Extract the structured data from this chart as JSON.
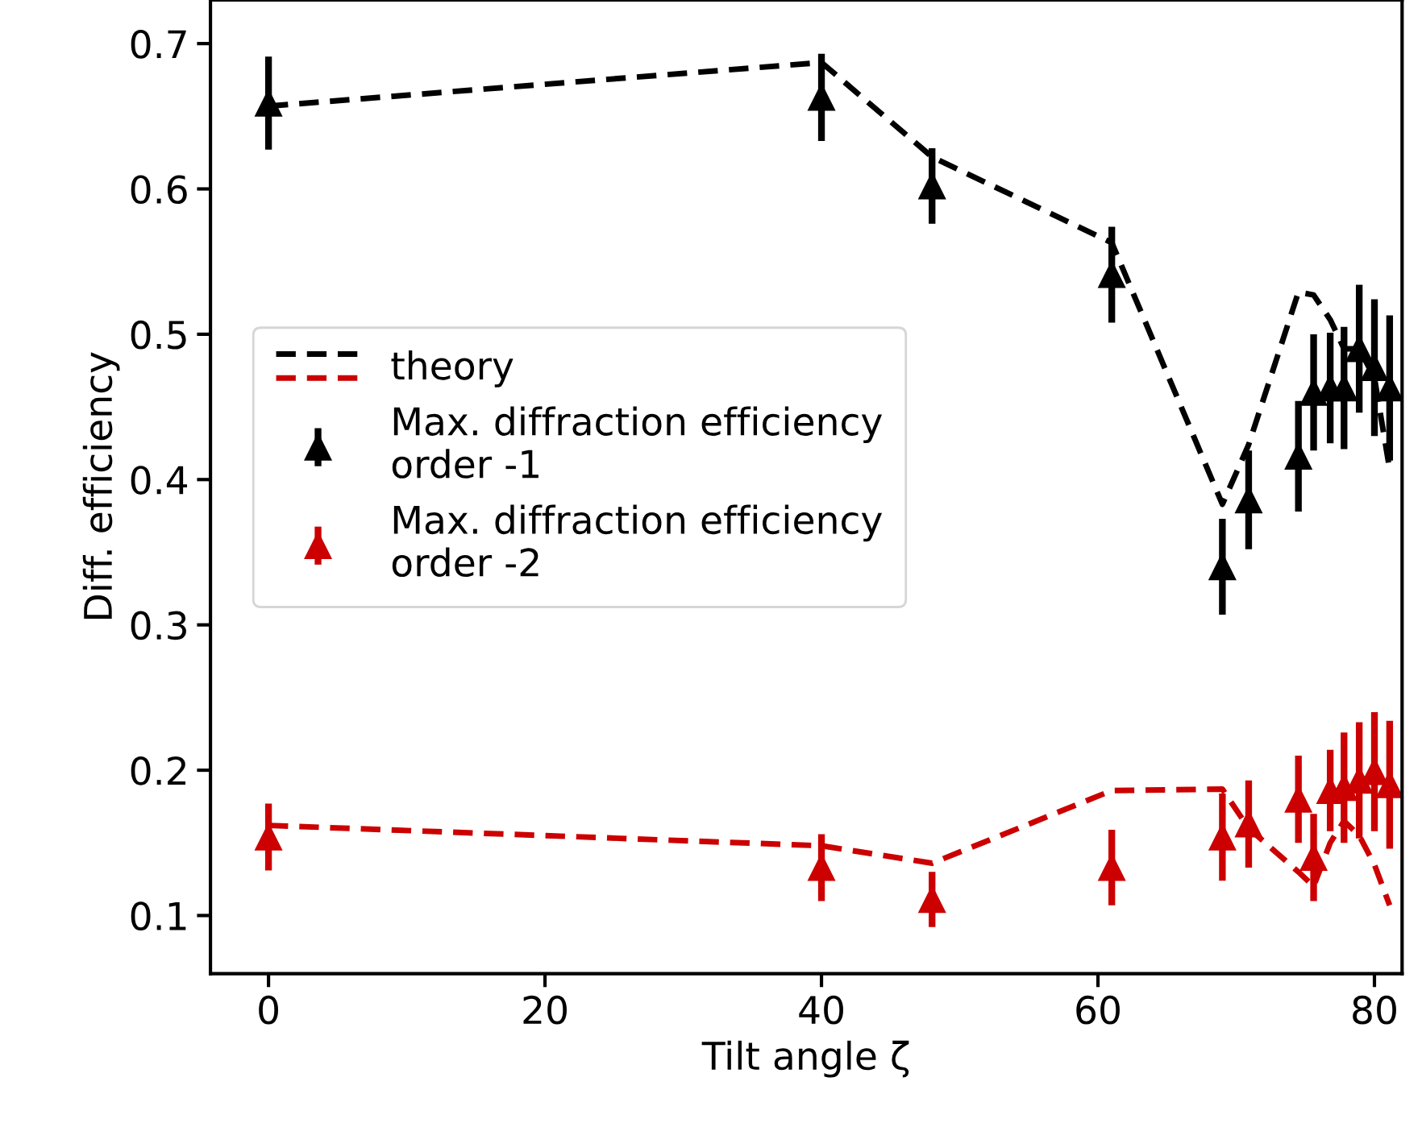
{
  "chart_data": {
    "type": "scatter",
    "xlabel": "Tilt angle ζ",
    "ylabel": "Diff. efficiency",
    "xlim": [
      -4.2,
      82
    ],
    "xticks": [
      0,
      20,
      40,
      60,
      80
    ],
    "ylim": [
      0.06,
      0.73
    ],
    "yticks": [
      0.1,
      0.2,
      0.3,
      0.4,
      0.5,
      0.6,
      0.7
    ],
    "grid": false,
    "legend": "left",
    "series": [
      {
        "name": "theory",
        "type": "line",
        "line_style": "dashed",
        "marker": "none",
        "color": "#000000",
        "x": [
          0,
          40,
          48,
          61,
          69,
          70.9,
          74.5,
          75.6,
          76.8,
          77.8,
          78.9,
          80,
          81.1
        ],
        "values": [
          0.657,
          0.687,
          0.622,
          0.563,
          0.383,
          0.424,
          0.529,
          0.527,
          0.51,
          0.49,
          0.49,
          0.47,
          0.407
        ]
      },
      {
        "type": "line",
        "line_style": "dashed",
        "marker": "none",
        "color": "#cc0000",
        "x": [
          0,
          40,
          48,
          61,
          69,
          70.9,
          74.5,
          75.6,
          76.8,
          77.8,
          78.9,
          80,
          81.1
        ],
        "values": [
          0.162,
          0.148,
          0.136,
          0.186,
          0.187,
          0.16,
          0.13,
          0.12,
          0.15,
          0.165,
          0.155,
          0.135,
          0.107
        ]
      },
      {
        "name": "Max. diffraction efficiency\norder -1",
        "marker": "triangle",
        "color": "#000000",
        "x": [
          0,
          40,
          48,
          61,
          69,
          70.9,
          74.5,
          75.6,
          76.8,
          77.8,
          78.9,
          80,
          81.1
        ],
        "values": [
          0.659,
          0.663,
          0.602,
          0.541,
          0.34,
          0.386,
          0.416,
          0.46,
          0.463,
          0.463,
          0.49,
          0.477,
          0.463
        ],
        "errors": [
          0.032,
          0.03,
          0.026,
          0.033,
          0.033,
          0.034,
          0.038,
          0.04,
          0.038,
          0.042,
          0.044,
          0.047,
          0.05
        ]
      },
      {
        "name": "Max. diffraction efficiency\norder -2",
        "marker": "triangle",
        "color": "#cc0000",
        "x": [
          0,
          40,
          48,
          61,
          69,
          70.9,
          74.5,
          75.6,
          76.8,
          77.8,
          78.9,
          80,
          81.1
        ],
        "values": [
          0.154,
          0.133,
          0.111,
          0.133,
          0.154,
          0.163,
          0.18,
          0.14,
          0.186,
          0.188,
          0.193,
          0.199,
          0.19
        ],
        "errors": [
          0.023,
          0.023,
          0.019,
          0.026,
          0.03,
          0.03,
          0.03,
          0.03,
          0.028,
          0.038,
          0.04,
          0.041,
          0.044
        ]
      }
    ]
  }
}
